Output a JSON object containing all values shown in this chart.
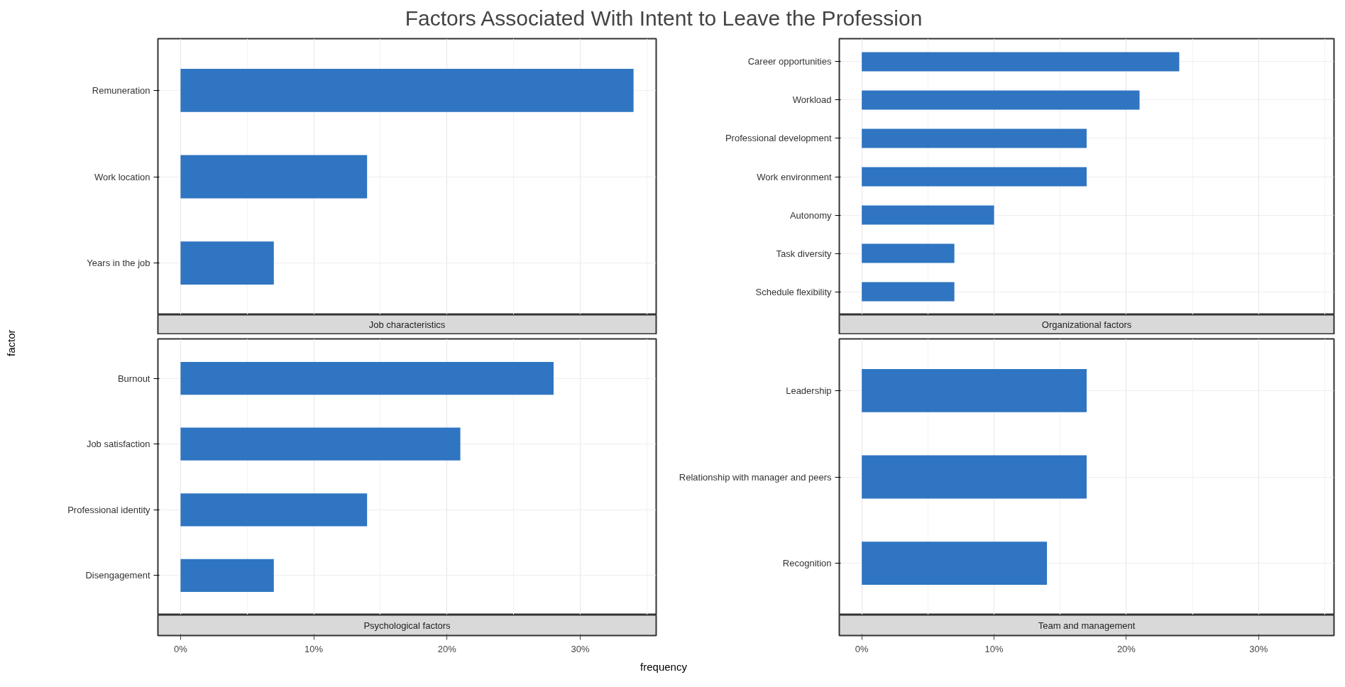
{
  "chart_data": [
    {
      "type": "bar",
      "orientation": "horizontal",
      "title": "Job characteristics",
      "ylabel": "factor",
      "annotations": [
        "Factors Associated With Intent to Leave the Profession"
      ],
      "categories": [
        "Remuneration",
        "Work location",
        "Years in the job"
      ],
      "values": [
        34,
        14,
        7
      ],
      "color": "#2f75c1",
      "xlim": [
        -1.7,
        35.7
      ],
      "xticks": [
        {
          "value": 0,
          "label": null
        },
        {
          "value": 10,
          "label": null
        },
        {
          "value": 20,
          "label": null
        },
        {
          "value": 30,
          "label": null
        }
      ],
      "grid": true,
      "tick_labels": "y"
    },
    {
      "type": "bar",
      "orientation": "horizontal",
      "title": "Organizational factors",
      "categories": [
        "Career opportunities",
        "Workload",
        "Professional development",
        "Work environment",
        "Autonomy",
        "Task diversity",
        "Schedule flexibility"
      ],
      "values": [
        24,
        21,
        17,
        17,
        10,
        7,
        7
      ],
      "color": "#2f75c1",
      "xlim": [
        -1.7,
        35.7
      ],
      "xticks": [
        {
          "value": 0,
          "label": null
        },
        {
          "value": 10,
          "label": null
        },
        {
          "value": 20,
          "label": null
        },
        {
          "value": 30,
          "label": null
        }
      ],
      "grid": true,
      "tick_labels": "y"
    },
    {
      "type": "bar",
      "orientation": "horizontal",
      "title": "Psychological factors",
      "xlabel": "frequency",
      "categories": [
        "Burnout",
        "Job satisfaction",
        "Professional identity",
        "Disengagement"
      ],
      "values": [
        28,
        21,
        14,
        7
      ],
      "color": "#2f75c1",
      "xlim": [
        -1.7,
        35.7
      ],
      "xticks": [
        {
          "value": 0,
          "label": "0%"
        },
        {
          "value": 10,
          "label": "10%"
        },
        {
          "value": 20,
          "label": "20%"
        },
        {
          "value": 30,
          "label": "30%"
        }
      ],
      "grid": true
    },
    {
      "type": "bar",
      "orientation": "horizontal",
      "title": "Team and management",
      "categories": [
        "Leadership",
        "Relationship with manager and peers",
        "Recognition"
      ],
      "values": [
        17,
        17,
        14
      ],
      "color": "#2f75c1",
      "xlim": [
        -1.7,
        35.7
      ],
      "xticks": [
        {
          "value": 0,
          "label": "0%"
        },
        {
          "value": 10,
          "label": "10%"
        },
        {
          "value": 20,
          "label": "20%"
        },
        {
          "value": 30,
          "label": "30%"
        }
      ],
      "grid": true
    }
  ]
}
